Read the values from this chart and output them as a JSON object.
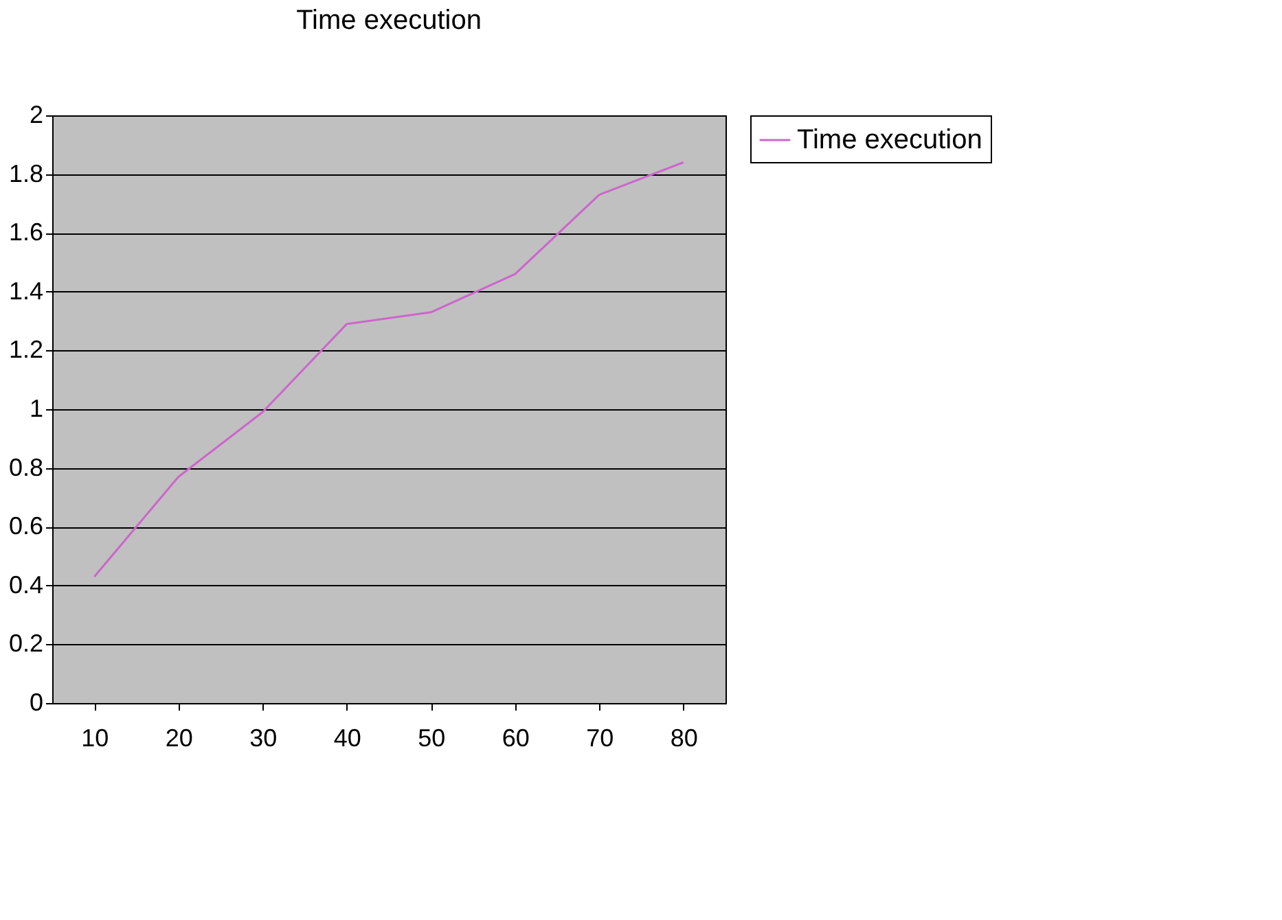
{
  "chart_data": {
    "type": "line",
    "title": "Time execution",
    "categories": [
      "10",
      "20",
      "30",
      "40",
      "50",
      "60",
      "70",
      "80"
    ],
    "series": [
      {
        "name": "Time execution",
        "color": "#cc66cc",
        "values": [
          0.43,
          0.77,
          0.99,
          1.29,
          1.33,
          1.46,
          1.73,
          1.84
        ]
      }
    ],
    "ylim": [
      0,
      2
    ],
    "yticks": [
      0,
      0.2,
      0.4,
      0.6,
      0.8,
      1,
      1.2,
      1.4,
      1.6,
      1.8,
      2
    ],
    "grid": "y",
    "legend": "right",
    "marker": "none",
    "line_style": "solid"
  }
}
